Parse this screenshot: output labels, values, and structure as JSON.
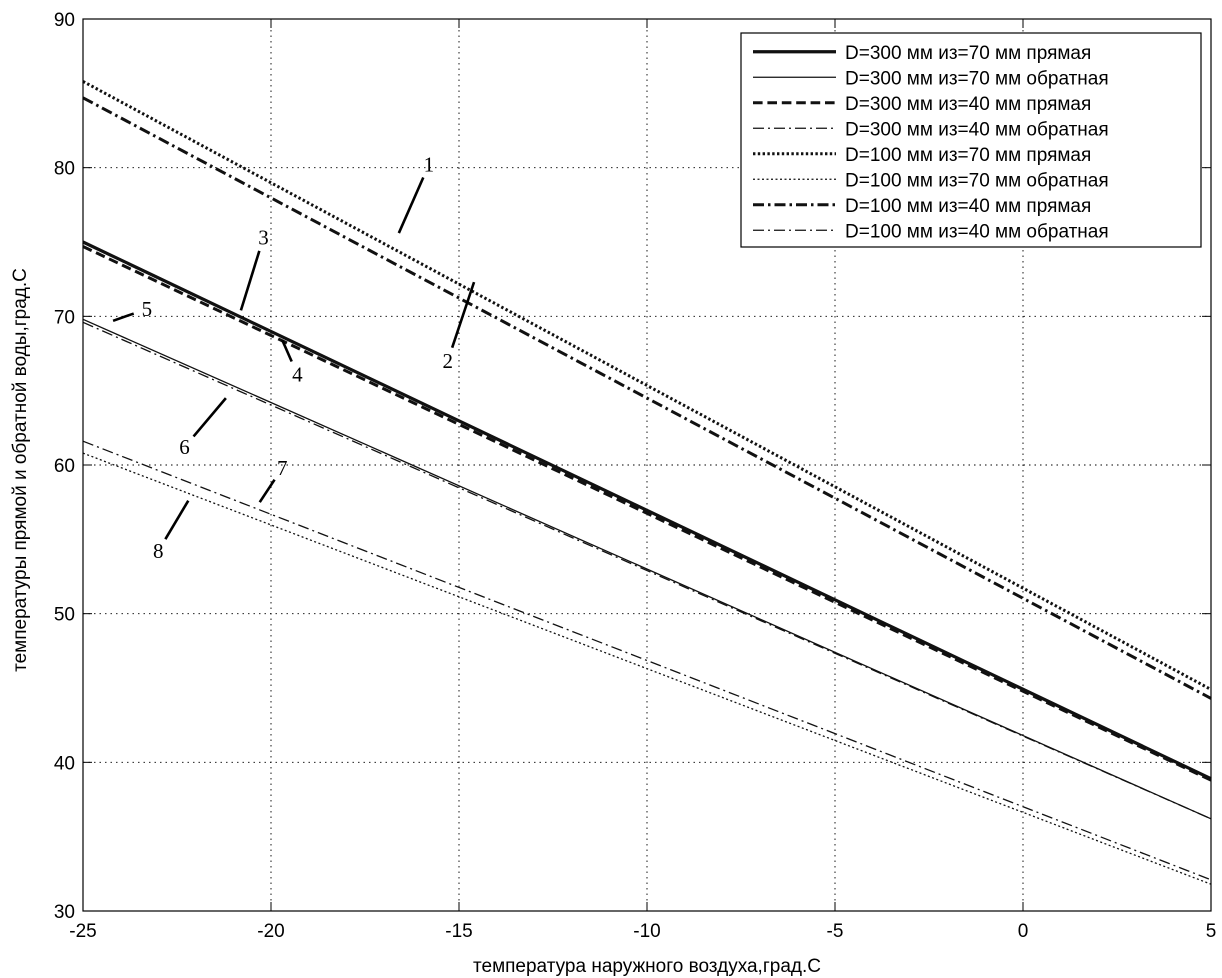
{
  "chart_data": {
    "type": "line",
    "title": "",
    "xlabel": "температура наружного воздуха,град.С",
    "ylabel": "температуры прямой и обратной воды,град.С",
    "xlim": [
      -25,
      5
    ],
    "ylim": [
      30,
      90
    ],
    "xticks": [
      -25,
      -20,
      -15,
      -10,
      -5,
      0,
      5
    ],
    "yticks": [
      30,
      40,
      50,
      60,
      70,
      80,
      90
    ],
    "xtick_labels": [
      "-25",
      "-20",
      "-15",
      "-10",
      "-5",
      "0",
      "5"
    ],
    "ytick_labels": [
      "30",
      "40",
      "50",
      "60",
      "70",
      "80",
      "90"
    ],
    "grid": true,
    "legend_position": "top-right",
    "series": [
      {
        "name": "D=300 мм из=70 мм прямая",
        "x": [
          -25,
          5
        ],
        "y": [
          75.0,
          38.9
        ],
        "style": "solid",
        "width": 3.2
      },
      {
        "name": "D=300 мм из=70 мм обратная",
        "x": [
          -25,
          5
        ],
        "y": [
          69.8,
          36.2
        ],
        "style": "solid",
        "width": 1.3
      },
      {
        "name": "D=300 мм из=40 мм прямая",
        "x": [
          -25,
          5
        ],
        "y": [
          74.7,
          38.8
        ],
        "style": "dashed",
        "width": 3.0
      },
      {
        "name": "D=300 мм из=40 мм обратная",
        "x": [
          -25,
          5
        ],
        "y": [
          69.6,
          36.2
        ],
        "style": "dashdot",
        "width": 1.3
      },
      {
        "name": "D=100 мм из=70 мм прямая",
        "x": [
          -25,
          5
        ],
        "y": [
          85.8,
          44.9
        ],
        "style": "dotted",
        "width": 3.0
      },
      {
        "name": "D=100 мм из=70 мм обратная",
        "x": [
          -25,
          5
        ],
        "y": [
          60.8,
          31.8
        ],
        "style": "dotted",
        "width": 1.3
      },
      {
        "name": "D=100 мм из=40 мм прямая",
        "x": [
          -25,
          5
        ],
        "y": [
          84.7,
          44.3
        ],
        "style": "dashdot",
        "width": 3.0
      },
      {
        "name": "D=100 мм из=40 мм обратная",
        "x": [
          -25,
          5
        ],
        "y": [
          61.6,
          32.1
        ],
        "style": "dashdot",
        "width": 1.3
      }
    ],
    "annotations": [
      {
        "text": "1",
        "x": -15.8,
        "y": 80.2,
        "arrow_to": [
          -16.6,
          75.6
        ]
      },
      {
        "text": "2",
        "x": -15.3,
        "y": 67.0,
        "arrow_to": [
          -14.6,
          72.3
        ]
      },
      {
        "text": "3",
        "x": -20.2,
        "y": 75.3,
        "arrow_to": [
          -20.8,
          70.4
        ]
      },
      {
        "text": "4",
        "x": -19.3,
        "y": 66.1,
        "arrow_to": [
          -19.7,
          68.4
        ]
      },
      {
        "text": "5",
        "x": -23.3,
        "y": 70.5,
        "arrow_to": [
          -24.2,
          69.7
        ]
      },
      {
        "text": "6",
        "x": -22.3,
        "y": 61.2,
        "arrow_to": [
          -21.2,
          64.5
        ]
      },
      {
        "text": "7",
        "x": -19.7,
        "y": 59.8,
        "arrow_to": [
          -20.3,
          57.5
        ]
      },
      {
        "text": "8",
        "x": -23.0,
        "y": 54.2,
        "arrow_to": [
          -22.2,
          57.6
        ]
      }
    ]
  }
}
